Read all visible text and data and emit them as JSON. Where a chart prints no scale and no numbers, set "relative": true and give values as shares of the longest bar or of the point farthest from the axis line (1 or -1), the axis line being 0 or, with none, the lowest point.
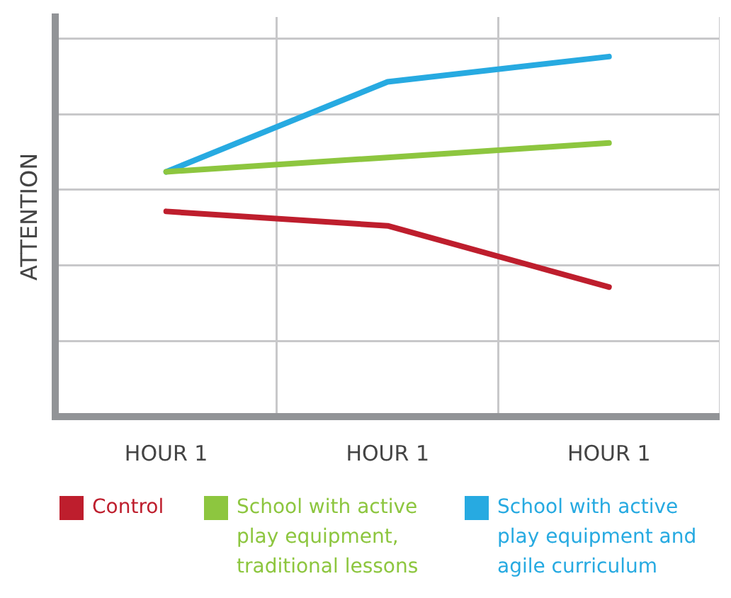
{
  "chart_data": {
    "type": "line",
    "ylabel": "ATTENTION",
    "categories": [
      "HOUR 1",
      "HOUR 1",
      "HOUR 1"
    ],
    "relative": true,
    "grid": true,
    "legend": "bottom",
    "marker": "none",
    "line_style": "solid",
    "series": [
      {
        "name": "Control",
        "color": "#be1e2d",
        "values": [
          0.57,
          0.53,
          0.36
        ]
      },
      {
        "name": "School with active play equipment, traditional lessons",
        "color": "#8dc63f",
        "values": [
          0.68,
          0.72,
          0.76
        ]
      },
      {
        "name": "School with active play equipment and agile curriculum",
        "color": "#27aae1",
        "values": [
          0.68,
          0.93,
          1
        ]
      }
    ]
  }
}
